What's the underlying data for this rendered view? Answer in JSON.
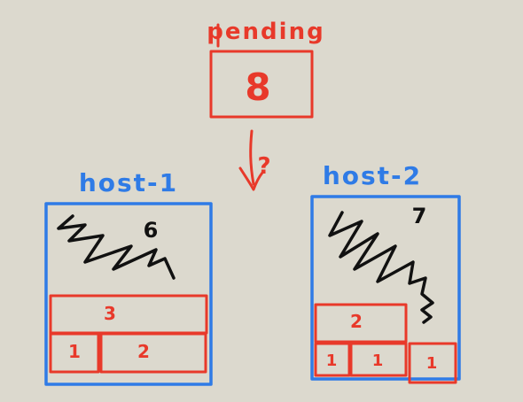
{
  "colors": {
    "background": "#dcd9ce",
    "pending": "#e8392a",
    "host": "#2f7be6",
    "jobs": "#e8392a",
    "scribble": "#111111"
  },
  "pending": {
    "label": "pending",
    "count": "8",
    "question": "?"
  },
  "hosts": [
    {
      "name": "host-1",
      "free": "6",
      "jobs": [
        "3",
        "1",
        "2"
      ]
    },
    {
      "name": "host-2",
      "free": "7",
      "jobs": [
        "2",
        "1",
        "1",
        "1"
      ]
    }
  ]
}
